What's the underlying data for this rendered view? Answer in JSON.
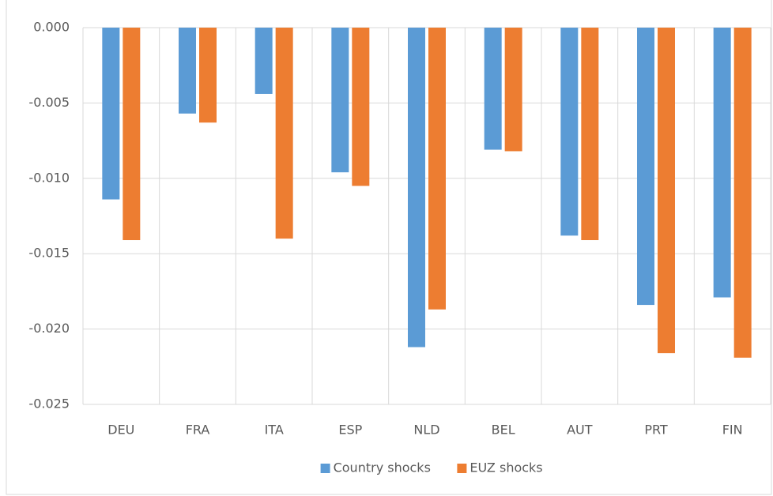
{
  "chart_data": {
    "type": "bar",
    "categories": [
      "DEU",
      "FRA",
      "ITA",
      "ESP",
      "NLD",
      "BEL",
      "AUT",
      "PRT",
      "FIN"
    ],
    "series": [
      {
        "name": "Country shocks",
        "color": "#5b9bd5",
        "values": [
          -0.0114,
          -0.0057,
          -0.0044,
          -0.0096,
          -0.0212,
          -0.0081,
          -0.0138,
          -0.0184,
          -0.0179
        ]
      },
      {
        "name": "EUZ shocks",
        "color": "#ed7d31",
        "values": [
          -0.0141,
          -0.0063,
          -0.014,
          -0.0105,
          -0.0187,
          -0.0082,
          -0.0141,
          -0.0216,
          -0.0219
        ]
      }
    ],
    "ylim": [
      -0.025,
      0
    ],
    "yticks": [
      {
        "value": 0,
        "label": "0.000"
      },
      {
        "value": -0.005,
        "label": "-0.005"
      },
      {
        "value": -0.01,
        "label": "-0.010"
      },
      {
        "value": -0.015,
        "label": "-0.015"
      },
      {
        "value": -0.02,
        "label": "-0.020"
      },
      {
        "value": -0.025,
        "label": "-0.025"
      }
    ],
    "grid": true,
    "legend": "bottom"
  }
}
